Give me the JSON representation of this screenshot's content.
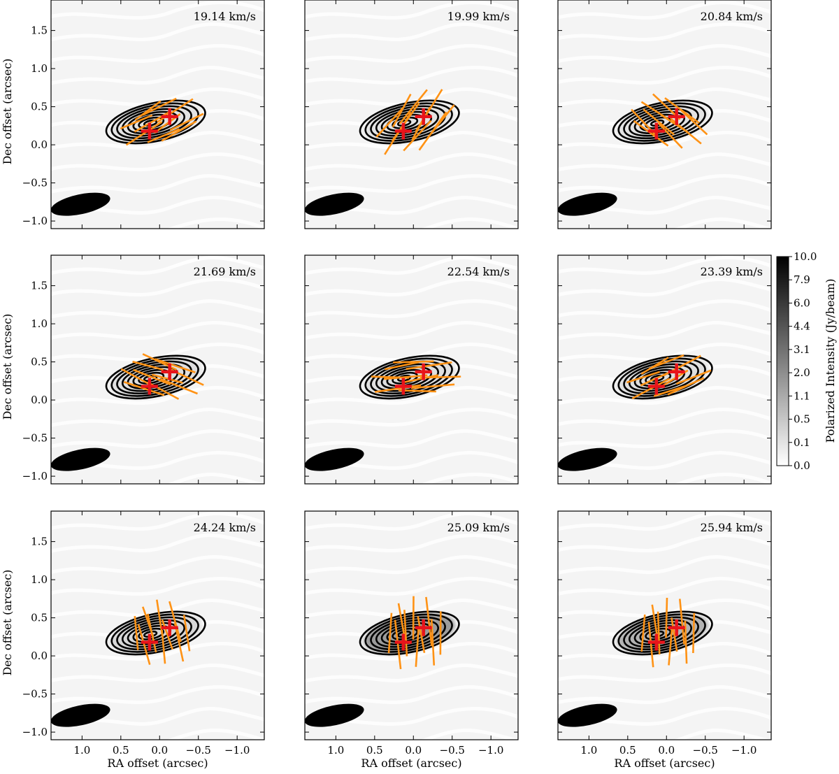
{
  "chart_data": {
    "type": "polarization-channel-map-grid",
    "axes_common": {
      "xlabel": "RA offset (arcsec)",
      "ylabel": "Dec offset (arcsec)",
      "xlim": [
        1.4,
        -1.35
      ],
      "ylim": [
        -1.1,
        1.9
      ],
      "xticks": [
        1.0,
        0.5,
        0.0,
        -0.5,
        -1.0
      ],
      "xtick_labels": [
        "1.0",
        "0.5",
        "0.0",
        "−0.5",
        "−1.0"
      ],
      "yticks": [
        -1.0,
        -0.5,
        0.0,
        0.5,
        1.0,
        1.5
      ],
      "ytick_labels": [
        "−1.0",
        "−0.5",
        "0.0",
        "0.5",
        "1.0",
        "1.5"
      ]
    },
    "colorbar": {
      "label": "Polarized Intensity (Jy/beam)",
      "tick_labels": [
        "0.0",
        "0.1",
        "0.5",
        "1.1",
        "2.0",
        "3.1",
        "4.4",
        "6.0",
        "7.9",
        "10.0"
      ],
      "range": [
        0.0,
        10.0
      ],
      "cmap": "gray-reversed"
    },
    "continuum_contours": {
      "center": [
        0.05,
        0.3
      ],
      "semi_major_axis": 0.65,
      "semi_minor_axis": 0.25,
      "position_angle_deg": 12,
      "levels": 8
    },
    "sources": [
      {
        "name": "source-1",
        "x": 0.13,
        "y": 0.18
      },
      {
        "name": "source-2",
        "x": -0.13,
        "y": 0.37
      }
    ],
    "beam": {
      "x": 1.02,
      "y": -0.78,
      "major": 0.39,
      "minor": 0.13,
      "angle_deg": 12
    },
    "panels": [
      {
        "label": "19.14 km/s",
        "pol_intensity": 0.12,
        "vector_angle_deg": -30,
        "vector_length": 0.55
      },
      {
        "label": "19.99 km/s",
        "pol_intensity": 0.12,
        "vector_angle_deg": -55,
        "vector_length": 0.65
      },
      {
        "label": "20.84 km/s",
        "pol_intensity": 0.12,
        "vector_angle_deg": 40,
        "vector_length": 0.55
      },
      {
        "label": "21.69 km/s",
        "pol_intensity": 0.15,
        "vector_angle_deg": 22,
        "vector_length": 0.55
      },
      {
        "label": "22.54 km/s",
        "pol_intensity": 0.15,
        "vector_angle_deg": -5,
        "vector_length": 0.6
      },
      {
        "label": "23.39 km/s",
        "pol_intensity": 0.15,
        "vector_angle_deg": -25,
        "vector_length": 0.55
      },
      {
        "label": "24.24 km/s",
        "pol_intensity": 0.2,
        "vector_angle_deg": 78,
        "vector_length": 0.55
      },
      {
        "label": "25.09 km/s",
        "pol_intensity": 0.6,
        "vector_angle_deg": 87,
        "vector_length": 0.65
      },
      {
        "label": "25.94 km/s",
        "pol_intensity": 0.45,
        "vector_angle_deg": 88,
        "vector_length": 0.6
      }
    ],
    "colors": {
      "vector": "#ff9214",
      "source_marker": "#e8141b",
      "contour": "#000000",
      "beam": "#000000"
    }
  }
}
